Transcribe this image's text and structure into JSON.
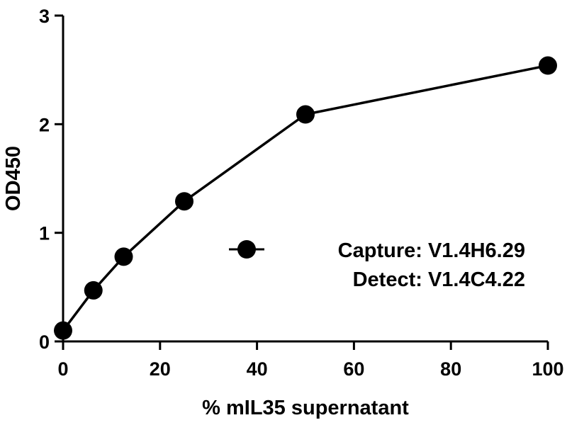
{
  "chart_data": {
    "type": "line",
    "xlabel": "% mIL35 supernatant",
    "ylabel": "OD450",
    "xlim": [
      0,
      100
    ],
    "ylim": [
      0,
      3
    ],
    "x_ticks": [
      0,
      20,
      40,
      60,
      80,
      100
    ],
    "y_ticks": [
      0,
      1,
      2,
      3
    ],
    "grid": false,
    "legend_position": "center-right",
    "series": [
      {
        "name": "Capture: V1.4H6.29",
        "name_line2": "Detect: V1.4C4.22",
        "color": "#000000",
        "marker": "circle",
        "x": [
          0,
          6.25,
          12.5,
          25,
          50,
          100
        ],
        "y": [
          0.1,
          0.47,
          0.78,
          1.29,
          2.09,
          2.54
        ]
      }
    ]
  }
}
